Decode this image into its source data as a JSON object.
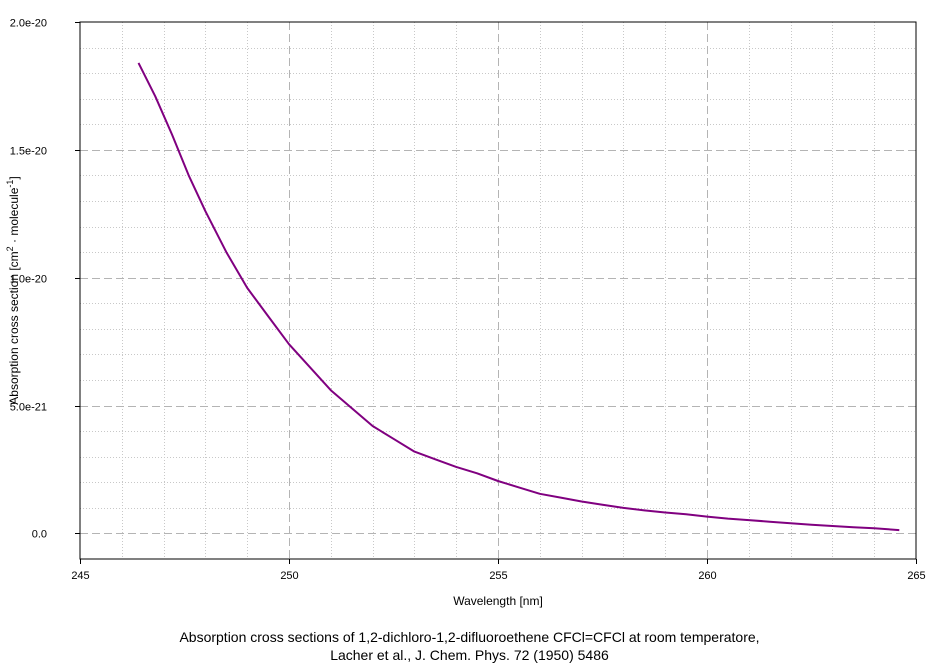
{
  "chart_data": {
    "type": "line",
    "xlabel": "Wavelength [nm]",
    "ylabel_main": "Absorption cross section [cm",
    "ylabel_sup1": "2",
    "ylabel_mid": " · molecule",
    "ylabel_sup2": "-1",
    "ylabel_end": "]",
    "xlim": [
      245,
      265
    ],
    "ylim": [
      -1e-21,
      2e-20
    ],
    "x_ticks": [
      245,
      250,
      255,
      260,
      265
    ],
    "x_tick_labels": [
      "245",
      "250",
      "255",
      "260",
      "265"
    ],
    "y_ticks": [
      0,
      5e-21,
      1e-20,
      1.5e-20,
      2e-20
    ],
    "y_tick_labels": [
      "0.0",
      "5.0e-21",
      "1.0e-20",
      "1.5e-20",
      "2.0e-20"
    ],
    "grid": true,
    "series": [
      {
        "color": "#800080",
        "x": [
          246.4,
          246.8,
          247.2,
          247.6,
          248.0,
          248.5,
          249.0,
          249.5,
          250.0,
          250.5,
          251.0,
          251.5,
          252.0,
          252.5,
          253.0,
          253.5,
          254.0,
          254.5,
          255.0,
          255.5,
          256.0,
          256.5,
          257.0,
          257.5,
          258.0,
          258.5,
          259.0,
          259.5,
          260.0,
          260.5,
          261.0,
          261.5,
          262.0,
          262.5,
          263.0,
          263.5,
          264.0,
          264.6
        ],
        "y": [
          1.84e-20,
          1.71e-20,
          1.56e-20,
          1.4e-20,
          1.26e-20,
          1.1e-20,
          9.6e-21,
          8.5e-21,
          7.4e-21,
          6.5e-21,
          5.6e-21,
          4.9e-21,
          4.2e-21,
          3.7e-21,
          3.2e-21,
          2.9e-21,
          2.6e-21,
          2.35e-21,
          2.05e-21,
          1.8e-21,
          1.55e-21,
          1.4e-21,
          1.25e-21,
          1.12e-21,
          1e-21,
          9e-22,
          8.2e-22,
          7.5e-22,
          6.6e-22,
          5.8e-22,
          5.2e-22,
          4.6e-22,
          4e-22,
          3.4e-22,
          2.9e-22,
          2.4e-22,
          2e-22,
          1.3e-22
        ]
      }
    ]
  },
  "caption": {
    "line1": "Absorption cross sections of 1,2-dichloro-1,2-difluoroethene CFCl=CFCl at room temperatore,",
    "line2": "Lacher et al., J. Chem. Phys. 72 (1950) 5486"
  }
}
